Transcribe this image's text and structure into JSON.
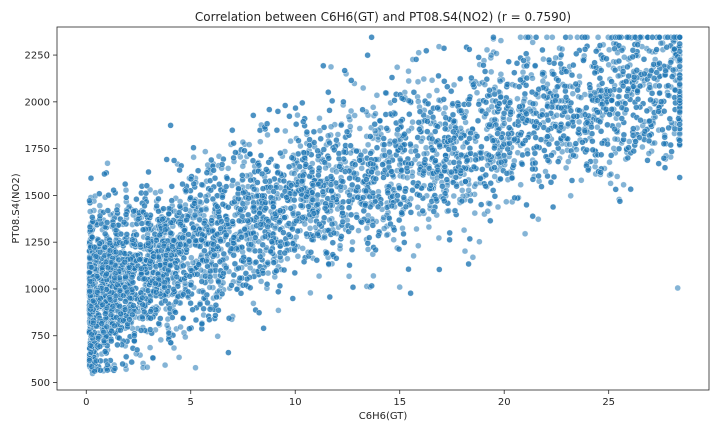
{
  "chart_data": {
    "type": "scatter",
    "title": "Correlation between C6H6(GT) and PT08.S4(NO2) (r = 0.7590)",
    "xlabel": "C6H6(GT)",
    "ylabel": "PT08.S4(NO2)",
    "xlim": [
      -1.4,
      29.8
    ],
    "ylim": [
      460,
      2400
    ],
    "xticks": [
      0,
      5,
      10,
      15,
      20,
      25
    ],
    "yticks": [
      500,
      750,
      1000,
      1250,
      1500,
      1750,
      2000,
      2250
    ],
    "grid": false,
    "legend": "none",
    "marker_color": "#1f77b4",
    "marker_edge": "#ffffff",
    "marker_alpha": 0.55,
    "x_clip_max": 28.4,
    "y_clip_max": 2345,
    "correlation_r": 0.759,
    "trend_intercept": 940,
    "trend_slope": 58,
    "trend_curvature": -0.62,
    "spread_sd": 215,
    "point_count": 6500,
    "outliers": [
      {
        "x": 0.3,
        "y": 548
      },
      {
        "x": 0.4,
        "y": 560
      },
      {
        "x": 28.3,
        "y": 1005
      },
      {
        "x": 27.2,
        "y": 1780
      },
      {
        "x": 21.0,
        "y": 1295
      },
      {
        "x": 15.0,
        "y": 1010
      }
    ]
  }
}
